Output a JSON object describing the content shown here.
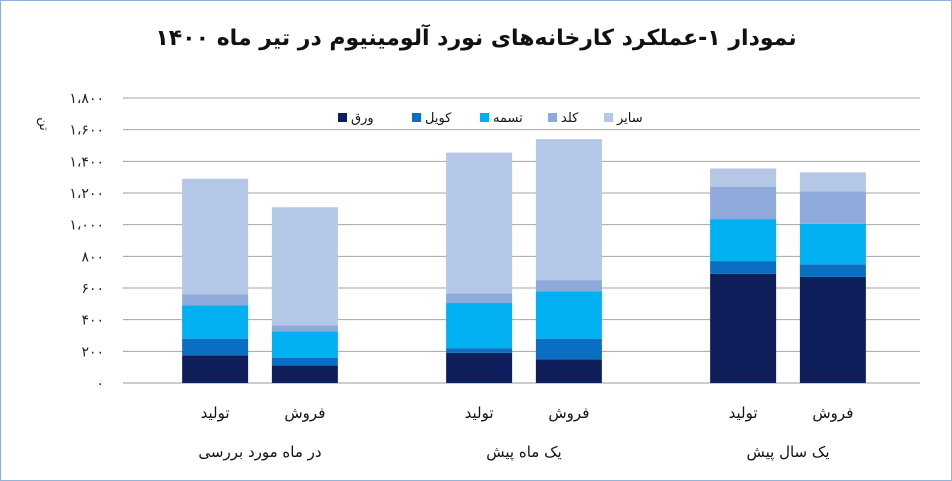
{
  "chart_data": {
    "type": "bar",
    "stacked": true,
    "title": "نمودار ۱-عملکرد کارخانه‌های نورد آلومینیوم در تیر ماه ۱۴۰۰",
    "ylabel": "تن",
    "ylim": [
      0,
      1800
    ],
    "y_ticks": [
      {
        "value": 0,
        "label": "۰"
      },
      {
        "value": 200,
        "label": "۲۰۰"
      },
      {
        "value": 400,
        "label": "۴۰۰"
      },
      {
        "value": 600,
        "label": "۶۰۰"
      },
      {
        "value": 800,
        "label": "۸۰۰"
      },
      {
        "value": 1000,
        "label": "۱،۰۰۰"
      },
      {
        "value": 1200,
        "label": "۱،۲۰۰"
      },
      {
        "value": 1400,
        "label": "۱،۴۰۰"
      },
      {
        "value": 1600,
        "label": "۱،۶۰۰"
      },
      {
        "value": 1800,
        "label": "۱،۸۰۰"
      }
    ],
    "grid": true,
    "legend_position": "top-left",
    "groups": [
      "در ماه مورد بررسی",
      "یک ماه پیش",
      "یک سال پیش"
    ],
    "categories": [
      "تولید",
      "فروش",
      "تولید",
      "فروش",
      "تولید",
      "فروش"
    ],
    "series": [
      {
        "name": "ورق",
        "color": "#0f1f5c",
        "values": [
          175,
          110,
          190,
          150,
          690,
          670
        ]
      },
      {
        "name": "کویل",
        "color": "#0a6fc2",
        "values": [
          105,
          50,
          30,
          130,
          80,
          80
        ]
      },
      {
        "name": "تسمه",
        "color": "#00b0f0",
        "values": [
          210,
          165,
          285,
          300,
          265,
          255
        ]
      },
      {
        "name": "کلد",
        "color": "#8eaadb",
        "values": [
          70,
          40,
          60,
          70,
          205,
          205
        ]
      },
      {
        "name": "سایر",
        "color": "#b4c7e7",
        "values": [
          730,
          745,
          890,
          890,
          115,
          120
        ]
      }
    ]
  }
}
